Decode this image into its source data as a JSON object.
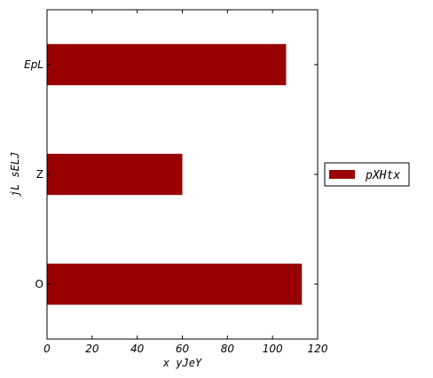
{
  "chart_data": {
    "type": "bar",
    "orientation": "horizontal",
    "categories": [
      "O",
      "Z",
      "EpL"
    ],
    "series": [
      {
        "name": "pXHtx",
        "values": [
          113,
          60,
          106
        ],
        "color": "#990000"
      }
    ],
    "xlabel": "x  yJeY",
    "ylabel": "jL sELJ",
    "xlim": [
      0,
      120
    ],
    "xticks": [
      0,
      20,
      40,
      60,
      80,
      100,
      120
    ],
    "grid": false,
    "legend_position": "outside-right"
  }
}
